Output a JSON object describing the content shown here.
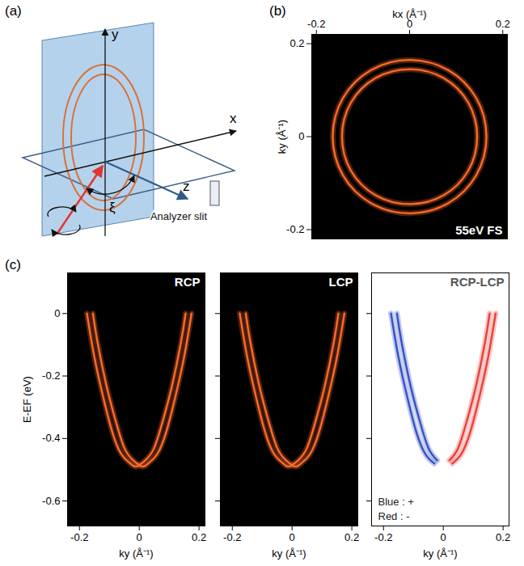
{
  "diagram": {
    "label": "(a)",
    "axis_labels": [
      "x",
      "y",
      "z"
    ],
    "angle_label": "ξ",
    "slit_label": "Analyzer slit"
  },
  "chart_data": [
    {
      "type": "line",
      "panel_label": "(b)",
      "title": "55eV FS",
      "x_label": "kx (Å⁻¹)",
      "y_label": "ky (Å⁻¹)",
      "xlim": [
        -0.21,
        0.21
      ],
      "ylim": [
        -0.22,
        0.22
      ],
      "xticks": [
        -0.2,
        0,
        0.2
      ],
      "yticks": [
        -0.2,
        0,
        0.2
      ],
      "series": [
        {
          "color": "#ff6a2a",
          "x": [
            0.145,
            0.126,
            0.073,
            0,
            -0.073,
            -0.126,
            -0.145,
            -0.126,
            -0.073,
            0,
            0.073,
            0.126
          ],
          "values": [
            0,
            0.073,
            0.126,
            0.145,
            0.126,
            0.073,
            0,
            -0.073,
            -0.126,
            -0.145,
            -0.126,
            -0.073
          ]
        },
        {
          "color": "#ff6a2a",
          "x": [
            0.165,
            0.143,
            0.083,
            0,
            -0.083,
            -0.143,
            -0.165,
            -0.143,
            -0.083,
            0,
            0.083,
            0.143
          ],
          "values": [
            0,
            0.083,
            0.143,
            0.165,
            0.143,
            0.083,
            0,
            -0.083,
            -0.143,
            -0.165,
            -0.143,
            -0.083
          ]
        }
      ]
    },
    {
      "type": "line",
      "panel_label": "(c)",
      "title": "RCP",
      "x_label": "ky (Å⁻¹)",
      "y_label": "E-EF (eV)",
      "xlim": [
        -0.24,
        0.22
      ],
      "ylim": [
        -0.68,
        0.13
      ],
      "xticks": [
        -0.2,
        0,
        0.2
      ],
      "yticks": [
        0,
        -0.2,
        -0.4,
        -0.6
      ],
      "series": [
        {
          "color": "#ff6a2a",
          "x": [
            -0.175,
            -0.15,
            -0.12,
            -0.09,
            -0.06,
            -0.03,
            -0.01,
            0.02,
            0.05,
            0.08,
            0.11,
            0.14,
            0.155
          ],
          "values": [
            0,
            -0.14,
            -0.27,
            -0.38,
            -0.45,
            -0.48,
            -0.49,
            -0.47,
            -0.43,
            -0.34,
            -0.23,
            -0.09,
            0
          ]
        },
        {
          "color": "#ff6a2a",
          "x": [
            -0.155,
            -0.14,
            -0.11,
            -0.08,
            -0.05,
            -0.02,
            0.01,
            0.03,
            0.06,
            0.09,
            0.12,
            0.15,
            0.175
          ],
          "values": [
            0,
            -0.09,
            -0.23,
            -0.34,
            -0.43,
            -0.47,
            -0.49,
            -0.48,
            -0.45,
            -0.38,
            -0.27,
            -0.14,
            0
          ]
        }
      ]
    },
    {
      "type": "line",
      "title": "LCP",
      "tick_labels": "x",
      "x_label": "ky (Å⁻¹)",
      "xlim": [
        -0.24,
        0.22
      ],
      "ylim": [
        -0.68,
        0.13
      ],
      "xticks": [
        -0.2,
        0,
        0.2
      ],
      "yticks": [
        0,
        -0.2,
        -0.4,
        -0.6
      ],
      "series": [
        {
          "color": "#ff6a2a",
          "x": [
            -0.175,
            -0.15,
            -0.12,
            -0.09,
            -0.06,
            -0.03,
            -0.01,
            0.02,
            0.05,
            0.08,
            0.11,
            0.14,
            0.155
          ],
          "values": [
            0,
            -0.14,
            -0.27,
            -0.38,
            -0.45,
            -0.48,
            -0.49,
            -0.47,
            -0.43,
            -0.34,
            -0.23,
            -0.09,
            0
          ]
        },
        {
          "color": "#ff6a2a",
          "x": [
            -0.155,
            -0.14,
            -0.11,
            -0.08,
            -0.05,
            -0.02,
            0.01,
            0.03,
            0.06,
            0.09,
            0.12,
            0.15,
            0.175
          ],
          "values": [
            0,
            -0.09,
            -0.23,
            -0.34,
            -0.43,
            -0.47,
            -0.49,
            -0.48,
            -0.45,
            -0.38,
            -0.27,
            -0.14,
            0
          ]
        }
      ]
    },
    {
      "type": "line",
      "title": "RCP-LCP",
      "tick_labels": "x",
      "x_label": "ky (Å⁻¹)",
      "xlim": [
        -0.24,
        0.22
      ],
      "ylim": [
        -0.68,
        0.13
      ],
      "xticks": [
        -0.2,
        0,
        0.2
      ],
      "yticks": [
        0,
        -0.2,
        -0.4,
        -0.6
      ],
      "annotations": [
        "Blue : +",
        "Red : -"
      ],
      "series": [
        {
          "color": "#3552c4",
          "x": [
            -0.175,
            -0.15,
            -0.12,
            -0.09,
            -0.06,
            -0.03
          ],
          "values": [
            0,
            -0.14,
            -0.27,
            -0.38,
            -0.45,
            -0.48
          ]
        },
        {
          "color": "#3552c4",
          "x": [
            -0.155,
            -0.14,
            -0.11,
            -0.08,
            -0.05,
            -0.02
          ],
          "values": [
            0,
            -0.09,
            -0.23,
            -0.34,
            -0.43,
            -0.47
          ]
        },
        {
          "color": "#e8423c",
          "x": [
            0.02,
            0.05,
            0.08,
            0.11,
            0.14,
            0.155
          ],
          "values": [
            -0.47,
            -0.43,
            -0.34,
            -0.23,
            -0.09,
            0
          ]
        },
        {
          "color": "#e8423c",
          "x": [
            0.03,
            0.06,
            0.09,
            0.12,
            0.15,
            0.175
          ],
          "values": [
            -0.48,
            -0.45,
            -0.38,
            -0.27,
            -0.14,
            0
          ]
        }
      ]
    }
  ]
}
